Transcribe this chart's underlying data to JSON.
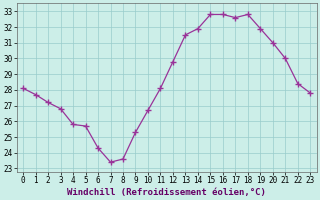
{
  "x": [
    0,
    1,
    2,
    3,
    4,
    5,
    6,
    7,
    8,
    9,
    10,
    11,
    12,
    13,
    14,
    15,
    16,
    17,
    18,
    19,
    20,
    21,
    22,
    23
  ],
  "y": [
    28.1,
    27.7,
    27.2,
    26.8,
    25.8,
    25.7,
    24.3,
    23.4,
    23.6,
    25.3,
    26.7,
    28.1,
    29.8,
    31.5,
    31.9,
    32.8,
    32.8,
    32.6,
    32.8,
    31.9,
    31.0,
    30.0,
    28.4,
    27.8
  ],
  "line_color": "#993399",
  "marker": "+",
  "marker_size": 4,
  "bg_color": "#cceee8",
  "grid_color": "#99cccc",
  "xlabel": "Windchill (Refroidissement éolien,°C)",
  "xlabel_fontsize": 6.5,
  "tick_fontsize": 5.5,
  "ylim": [
    22.8,
    33.5
  ],
  "yticks": [
    23,
    24,
    25,
    26,
    27,
    28,
    29,
    30,
    31,
    32,
    33
  ],
  "xlim": [
    -0.5,
    23.5
  ],
  "xticks": [
    0,
    1,
    2,
    3,
    4,
    5,
    6,
    7,
    8,
    9,
    10,
    11,
    12,
    13,
    14,
    15,
    16,
    17,
    18,
    19,
    20,
    21,
    22,
    23
  ]
}
